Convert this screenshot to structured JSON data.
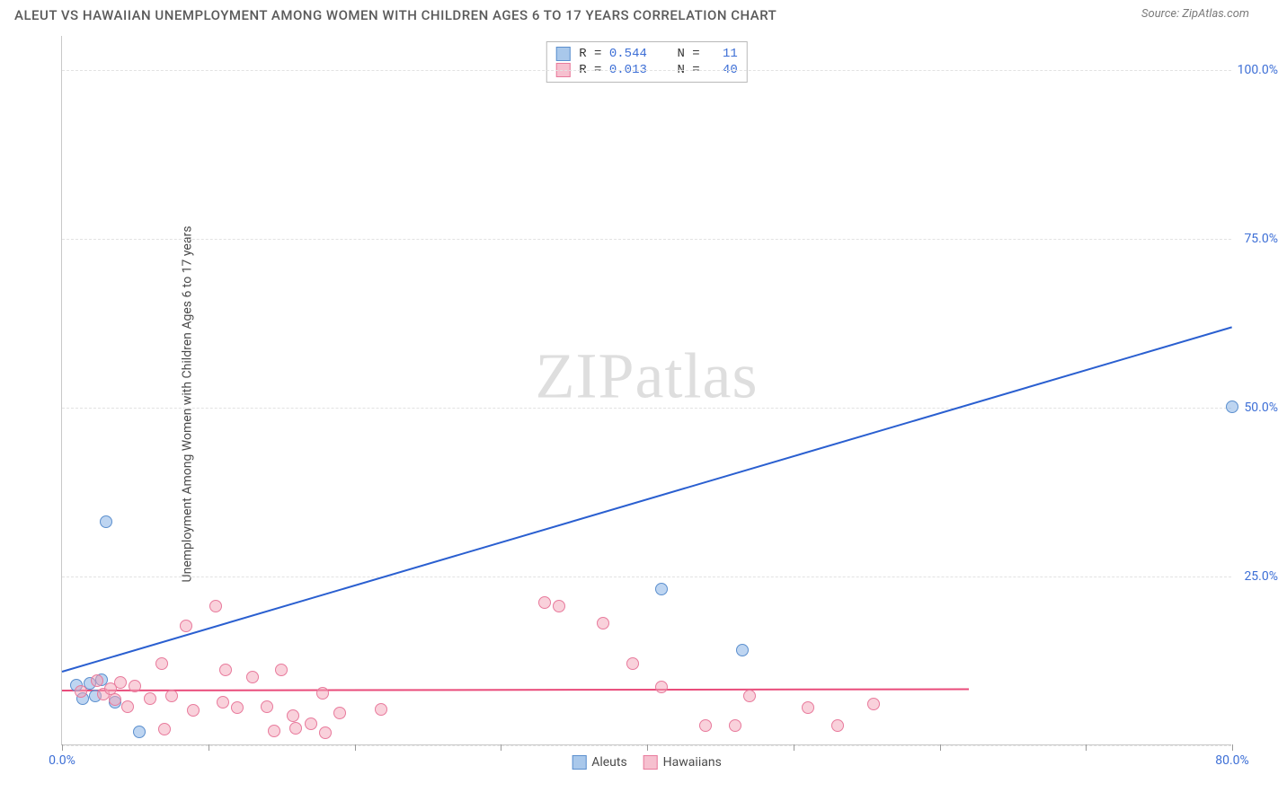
{
  "header": {
    "title": "ALEUT VS HAWAIIAN UNEMPLOYMENT AMONG WOMEN WITH CHILDREN AGES 6 TO 17 YEARS CORRELATION CHART",
    "source": "Source: ZipAtlas.com"
  },
  "watermark": {
    "part1": "ZIP",
    "part2": "atlas"
  },
  "chart": {
    "type": "scatter",
    "background_color": "#ffffff",
    "grid_color": "#e2e2e2",
    "axis_color": "#c8c8c8",
    "tick_label_color": "#3d6fd6",
    "y_axis_label": "Unemployment Among Women with Children Ages 6 to 17 years",
    "xlim": [
      0,
      80
    ],
    "ylim": [
      0,
      105
    ],
    "x_ticks_minor": [
      0,
      10,
      20,
      30,
      40,
      50,
      60,
      70,
      80
    ],
    "x_tick_labels": [
      {
        "value": 0,
        "label": "0.0%"
      },
      {
        "value": 80,
        "label": "80.0%"
      }
    ],
    "y_tick_labels": [
      {
        "value": 25,
        "label": "25.0%"
      },
      {
        "value": 50,
        "label": "50.0%"
      },
      {
        "value": 75,
        "label": "75.0%"
      },
      {
        "value": 100,
        "label": "100.0%"
      }
    ],
    "y_gridlines": [
      0,
      25,
      50,
      75,
      100
    ],
    "marker_radius": 7,
    "series": [
      {
        "name": "Aleuts",
        "fill_color": "rgba(136,179,230,0.55)",
        "stroke_color": "#5b8fce",
        "class": "aleut",
        "points": [
          [
            1.0,
            8.8
          ],
          [
            1.4,
            6.8
          ],
          [
            1.9,
            9.0
          ],
          [
            2.3,
            7.2
          ],
          [
            2.7,
            9.6
          ],
          [
            3.6,
            6.2
          ],
          [
            5.3,
            1.8
          ],
          [
            3.0,
            33.0
          ],
          [
            41.0,
            23.0
          ],
          [
            46.5,
            14.0
          ],
          [
            80.0,
            50.0
          ]
        ],
        "trend": {
          "x1": 0,
          "y1": 11.0,
          "x2": 80,
          "y2": 62.0,
          "color": "#2a5fd0",
          "width": 2
        },
        "stats": {
          "R": "0.544",
          "N": "11"
        }
      },
      {
        "name": "Hawaiians",
        "fill_color": "rgba(244,164,184,0.5)",
        "stroke_color": "#e87a9c",
        "class": "hawaiian",
        "points": [
          [
            1.3,
            7.8
          ],
          [
            2.4,
            9.5
          ],
          [
            2.8,
            7.4
          ],
          [
            3.3,
            8.2
          ],
          [
            3.6,
            6.6
          ],
          [
            4.0,
            9.2
          ],
          [
            4.5,
            5.6
          ],
          [
            5.0,
            8.6
          ],
          [
            6.0,
            6.8
          ],
          [
            6.8,
            12.0
          ],
          [
            7.5,
            7.2
          ],
          [
            8.5,
            17.5
          ],
          [
            9.0,
            5.0
          ],
          [
            10.5,
            20.5
          ],
          [
            11.0,
            6.2
          ],
          [
            11.2,
            11.0
          ],
          [
            12.0,
            5.4
          ],
          [
            13.0,
            10.0
          ],
          [
            14.0,
            5.6
          ],
          [
            14.5,
            2.0
          ],
          [
            15.0,
            11.0
          ],
          [
            15.8,
            4.2
          ],
          [
            16.0,
            2.4
          ],
          [
            17.0,
            3.0
          ],
          [
            17.8,
            7.6
          ],
          [
            18.0,
            1.7
          ],
          [
            19.0,
            4.6
          ],
          [
            21.8,
            5.2
          ],
          [
            33.0,
            21.0
          ],
          [
            34.0,
            20.5
          ],
          [
            37.0,
            18.0
          ],
          [
            39.0,
            12.0
          ],
          [
            41.0,
            8.5
          ],
          [
            44.0,
            2.8
          ],
          [
            46.0,
            2.8
          ],
          [
            47.0,
            7.2
          ],
          [
            51.0,
            5.4
          ],
          [
            53.0,
            2.8
          ],
          [
            55.5,
            6.0
          ],
          [
            7.0,
            2.2
          ]
        ],
        "trend": {
          "x1": 0,
          "y1": 8.2,
          "x2": 62,
          "y2": 8.4,
          "color": "#e94b7a",
          "width": 2
        },
        "stats": {
          "R": "0.013",
          "N": "40"
        }
      }
    ],
    "legend_bottom": [
      {
        "label": "Aleuts",
        "fill": "#a9c8eb",
        "stroke": "#5b8fce"
      },
      {
        "label": "Hawaiians",
        "fill": "#f6c0cf",
        "stroke": "#e87a9c"
      }
    ],
    "stat_box_swatches": [
      {
        "fill": "#a9c8eb",
        "stroke": "#5b8fce"
      },
      {
        "fill": "#f6c0cf",
        "stroke": "#e87a9c"
      }
    ],
    "stat_labels": {
      "R": "R =",
      "N": "N ="
    }
  }
}
